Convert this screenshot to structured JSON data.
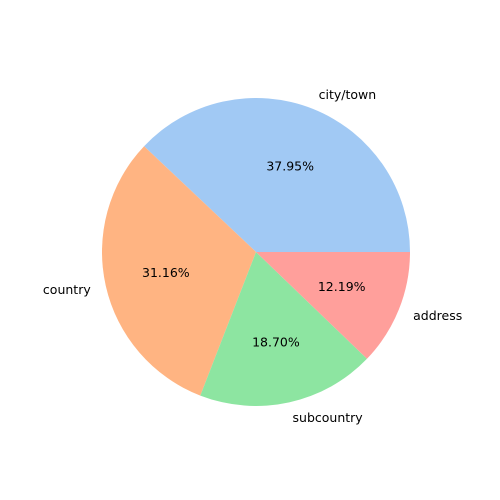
{
  "chart_data": {
    "type": "pie",
    "title": "",
    "start_angle_deg": 0,
    "direction": "counterclockwise",
    "legend": "none",
    "slices": [
      {
        "label": "city/town",
        "value": 37.95,
        "pct_label": "37.95%",
        "color": "#a1c9f4"
      },
      {
        "label": "country",
        "value": 31.16,
        "pct_label": "31.16%",
        "color": "#ffb482"
      },
      {
        "label": "subcountry",
        "value": 18.7,
        "pct_label": "18.70%",
        "color": "#8de5a1"
      },
      {
        "label": "address",
        "value": 12.19,
        "pct_label": "12.19%",
        "color": "#ff9f9b"
      }
    ]
  }
}
